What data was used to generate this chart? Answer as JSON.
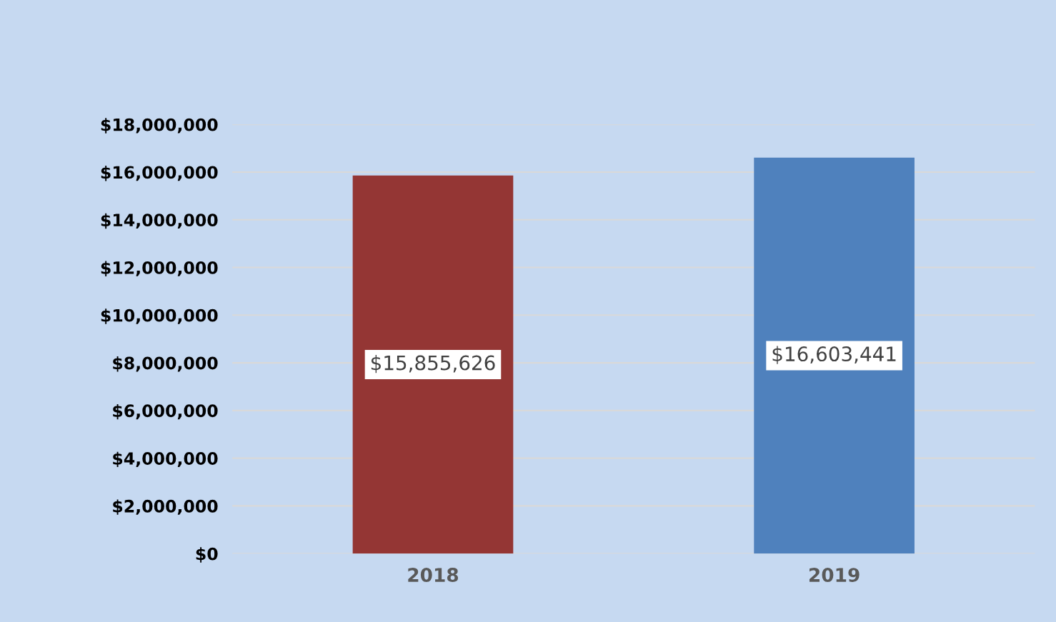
{
  "chart_data": {
    "type": "bar",
    "categories": [
      "2018",
      "2019"
    ],
    "values": [
      15855626,
      16603441
    ],
    "colors": [
      "#943634",
      "#4f81bd"
    ],
    "value_labels": [
      "$15,855,626",
      "$16,603,441"
    ],
    "ylim": [
      0,
      18000000
    ],
    "yticks": [
      {
        "value": 0,
        "label": "$0"
      },
      {
        "value": 2000000,
        "label": "$2,000,000"
      },
      {
        "value": 4000000,
        "label": "$4,000,000"
      },
      {
        "value": 6000000,
        "label": "$6,000,000"
      },
      {
        "value": 8000000,
        "label": "$8,000,000"
      },
      {
        "value": 10000000,
        "label": "$10,000,000"
      },
      {
        "value": 12000000,
        "label": "$12,000,000"
      },
      {
        "value": 14000000,
        "label": "$14,000,000"
      },
      {
        "value": 16000000,
        "label": "$16,000,000"
      },
      {
        "value": 18000000,
        "label": "$18,000,000"
      }
    ],
    "grid": "y",
    "legend": false
  }
}
